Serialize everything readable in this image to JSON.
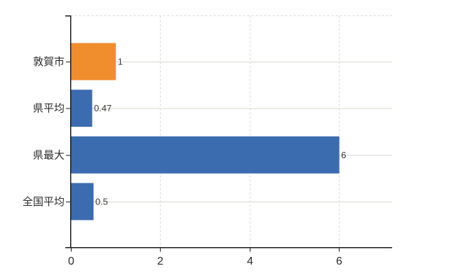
{
  "chart_data": {
    "type": "bar",
    "orientation": "horizontal",
    "title": "",
    "categories": [
      "敦賀市",
      "県平均",
      "県最大",
      "全国平均"
    ],
    "values": [
      1,
      0.47,
      6,
      0.5
    ],
    "value_labels": [
      "1",
      "0.47",
      "6",
      "0.5"
    ],
    "bar_color_roles": [
      "highlight",
      "default",
      "default",
      "default"
    ],
    "x_tick_labels": [
      "0",
      "2",
      "4",
      "6"
    ],
    "x_tick_values": [
      0,
      2,
      4,
      6
    ],
    "xlim": [
      0,
      7.2
    ],
    "grid": {
      "horizontal_row_lines": "solid",
      "vertical_tick_lines": "dashed",
      "top_border": "dashed"
    },
    "legend": null
  },
  "colors": {
    "bar_highlight": "#f08e2e",
    "bar_default": "#3c6cb0",
    "axis": "#1a1a1a",
    "grid_horizontal": "#d3d8cd",
    "grid_vertical": "#d9d9d9",
    "category_label": "#2b2b2b",
    "tick_label": "#2b2b2b",
    "value_label": "#3a3a3a",
    "background": "#ffffff"
  }
}
